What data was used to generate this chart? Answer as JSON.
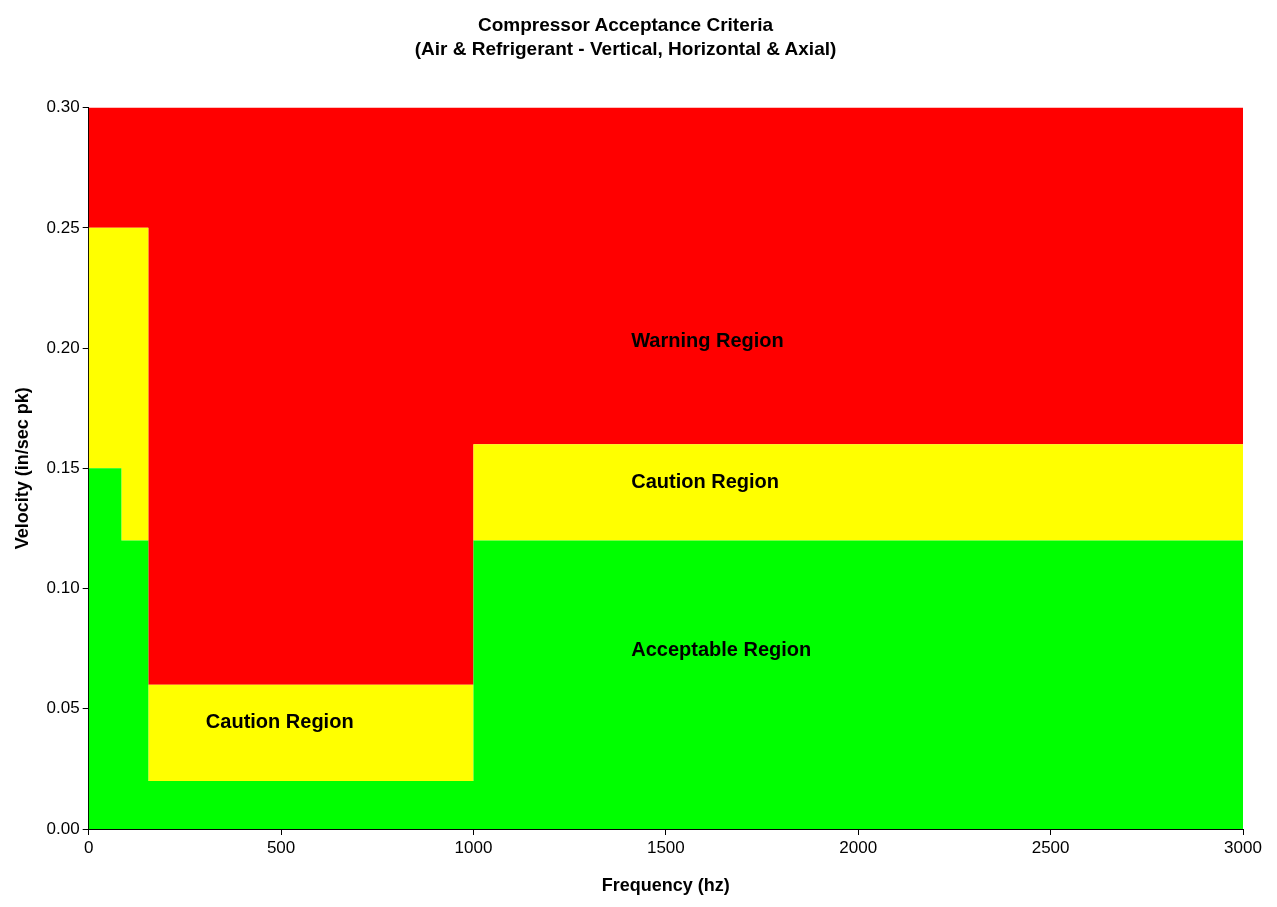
{
  "chart_data": {
    "type": "area",
    "title": "Compressor Acceptance Criteria",
    "subtitle": "(Air & Refrigerant - Vertical, Horizontal & Axial)",
    "xlabel": "Frequency (hz)",
    "ylabel": "Velocity (in/sec pk)",
    "stacked": true,
    "x": [
      0,
      85,
      155,
      1000,
      3000
    ],
    "series": [
      {
        "color": "#00ff00",
        "values": [
          0.15,
          0.12,
          0.02,
          0.12,
          0.12
        ]
      },
      {
        "color": "#ffff00",
        "values": [
          0.1,
          0.13,
          0.04,
          0.04,
          0.04
        ]
      },
      {
        "color": "#ff0000",
        "values": [
          0.05,
          0.05,
          0.24,
          0.14,
          0.14
        ]
      }
    ],
    "xlim": [
      0,
      3000
    ],
    "xticks": [
      0,
      500,
      1000,
      1500,
      2000,
      2500,
      3000
    ],
    "ylim": [
      0,
      0.3
    ],
    "yticks": [
      {
        "value": 0,
        "label": "0.00"
      },
      {
        "value": 0.05,
        "label": "0.05"
      },
      {
        "value": 0.1,
        "label": "0.10"
      },
      {
        "value": 0.15,
        "label": "0.15"
      },
      {
        "value": 0.2,
        "label": "0.20"
      },
      {
        "value": 0.25,
        "label": "0.25"
      },
      {
        "value": 0.3,
        "label": "0.30"
      }
    ],
    "grid": false,
    "legend": false,
    "marker": "none",
    "annotations": [
      "Warning Region",
      "Caution Region",
      "Acceptable Region",
      "Caution Region"
    ]
  }
}
